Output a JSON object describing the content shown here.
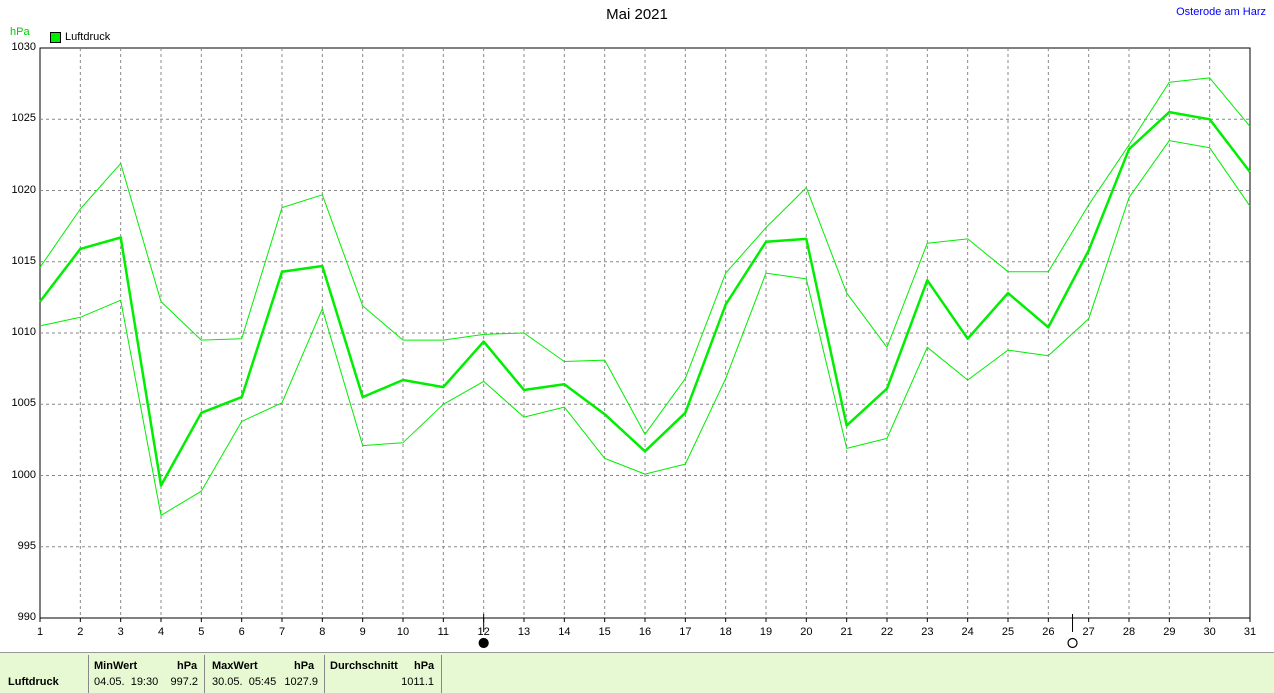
{
  "title": "Mai 2021",
  "location": "Osterode am Harz",
  "unit": "hPa",
  "legend_label": "Luftdruck",
  "colors": {
    "series": "#00ee00",
    "grid": "#888888",
    "axis_unit": "#00cc00",
    "location": "#0000ff",
    "footer_bg": "#e6f9d2"
  },
  "chart_data": {
    "type": "line",
    "x": [
      1,
      2,
      3,
      4,
      5,
      6,
      7,
      8,
      9,
      10,
      11,
      12,
      13,
      14,
      15,
      16,
      17,
      18,
      19,
      20,
      21,
      22,
      23,
      24,
      25,
      26,
      27,
      28,
      29,
      30,
      31
    ],
    "xlim": [
      1,
      31
    ],
    "ylim": [
      990,
      1030
    ],
    "yticks": [
      990,
      995,
      1000,
      1005,
      1010,
      1015,
      1020,
      1025,
      1030
    ],
    "grid": true,
    "legend": "top-left",
    "series": [
      {
        "name": "Luftdruck",
        "role": "mean",
        "values": [
          1012.2,
          1015.9,
          1016.7,
          999.3,
          1004.4,
          1005.5,
          1014.3,
          1014.7,
          1005.5,
          1006.7,
          1006.2,
          1009.4,
          1006.0,
          1006.4,
          1004.3,
          1001.7,
          1004.4,
          1012.0,
          1016.4,
          1016.6,
          1003.5,
          1006.1,
          1013.7,
          1009.6,
          1012.8,
          1010.4,
          1015.8,
          1022.9,
          1025.5,
          1025.0,
          1021.3
        ]
      },
      {
        "role": "max",
        "values": [
          1014.6,
          1018.7,
          1021.9,
          1012.2,
          1009.5,
          1009.6,
          1018.8,
          1019.7,
          1011.9,
          1009.5,
          1009.5,
          1009.9,
          1010.0,
          1008.0,
          1008.1,
          1002.9,
          1006.8,
          1014.2,
          1017.4,
          1020.2,
          1012.8,
          1009.0,
          1016.3,
          1016.6,
          1014.3,
          1014.3,
          1019.0,
          1023.2,
          1027.6,
          1027.9,
          1024.5
        ]
      },
      {
        "role": "min",
        "values": [
          1010.5,
          1011.1,
          1012.3,
          997.2,
          998.9,
          1003.8,
          1005.1,
          1011.7,
          1002.1,
          1002.3,
          1005.0,
          1006.6,
          1004.1,
          1004.8,
          1001.2,
          1000.1,
          1000.8,
          1006.8,
          1014.2,
          1013.8,
          1001.9,
          1002.6,
          1009.0,
          1006.7,
          1008.8,
          1008.4,
          1011.0,
          1019.5,
          1023.5,
          1023.0,
          1018.9
        ]
      }
    ],
    "moon_markers": [
      {
        "day": 12,
        "phase": "new-moon"
      },
      {
        "day": 26.6,
        "phase": "full-moon"
      }
    ]
  },
  "footer": {
    "row_label": "Luftdruck",
    "min_header": "MinWert",
    "min_unit": "hPa",
    "min_datetime": "04.05.  19:30",
    "min_value": "997.2",
    "max_header": "MaxWert",
    "max_unit": "hPa",
    "max_datetime": "30.05.  05:45",
    "max_value": "1027.9",
    "avg_header": "Durchschnitt",
    "avg_unit": "hPa",
    "avg_value": "1011.1"
  }
}
